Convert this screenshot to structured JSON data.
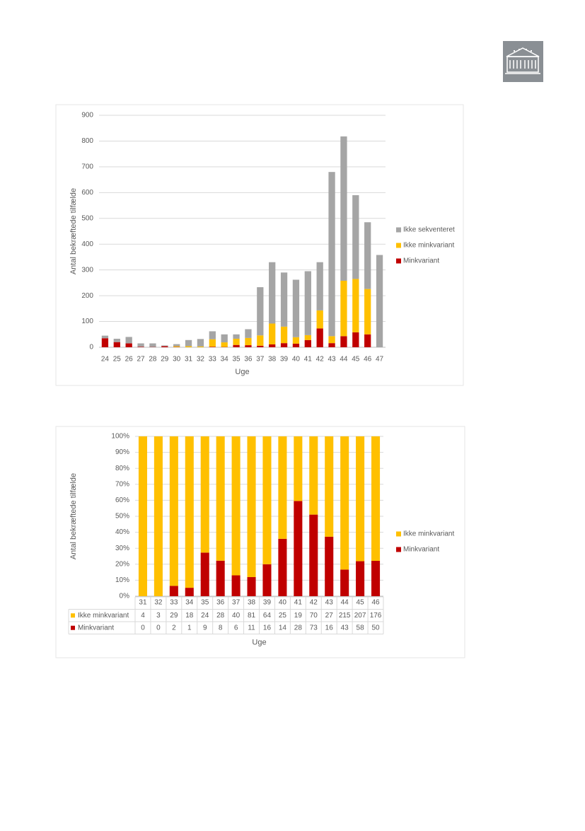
{
  "chart_data": [
    {
      "type": "stacked_bar",
      "y_label": "Antal bekræftede tilfælde",
      "x_label": "Uge",
      "categories": [
        "24",
        "25",
        "26",
        "27",
        "28",
        "29",
        "30",
        "31",
        "32",
        "33",
        "34",
        "35",
        "36",
        "37",
        "38",
        "39",
        "40",
        "41",
        "42",
        "43",
        "44",
        "45",
        "46",
        "47"
      ],
      "series": [
        {
          "name": "Minkvariant",
          "color": "#c00000",
          "values": [
            35,
            20,
            15,
            2,
            1,
            4,
            1,
            0,
            0,
            2,
            1,
            9,
            8,
            6,
            11,
            16,
            14,
            28,
            73,
            16,
            43,
            58,
            50,
            0
          ]
        },
        {
          "name": "Ikke minkvariant",
          "color": "#ffc000",
          "values": [
            0,
            0,
            0,
            0,
            0,
            0,
            3,
            4,
            3,
            29,
            18,
            24,
            28,
            40,
            81,
            64,
            25,
            19,
            70,
            27,
            215,
            207,
            176,
            0
          ]
        },
        {
          "name": "Ikke sekventeret",
          "color": "#a5a5a5",
          "values": [
            10,
            13,
            25,
            13,
            14,
            3,
            8,
            24,
            29,
            31,
            31,
            17,
            34,
            187,
            238,
            210,
            223,
            248,
            187,
            637,
            560,
            325,
            259,
            358
          ]
        }
      ],
      "ylim": [
        0,
        900
      ],
      "yticks": [
        0,
        100,
        200,
        300,
        400,
        500,
        600,
        700,
        800,
        900
      ],
      "grid": true,
      "legend": "right"
    },
    {
      "type": "percent_stacked_bar",
      "y_label": "Antal bekræftede tilfælde",
      "x_label": "Uge",
      "categories": [
        "31",
        "32",
        "33",
        "34",
        "35",
        "36",
        "37",
        "38",
        "39",
        "40",
        "41",
        "42",
        "43",
        "44",
        "45",
        "46"
      ],
      "series": [
        {
          "name": "Minkvariant",
          "color": "#c00000",
          "values": [
            0,
            0,
            2,
            1,
            9,
            8,
            6,
            11,
            16,
            14,
            28,
            73,
            16,
            43,
            58,
            50
          ]
        },
        {
          "name": "Ikke minkvariant",
          "color": "#ffc000",
          "values": [
            4,
            3,
            29,
            18,
            24,
            28,
            40,
            81,
            64,
            25,
            19,
            70,
            27,
            215,
            207,
            176
          ]
        }
      ],
      "ylim": [
        0,
        100
      ],
      "yticks": [
        {
          "value": 0,
          "label": "0%"
        },
        {
          "value": 10,
          "label": "10%"
        },
        {
          "value": 20,
          "label": "20%"
        },
        {
          "value": 30,
          "label": "30%"
        },
        {
          "value": 40,
          "label": "40%"
        },
        {
          "value": 50,
          "label": "50%"
        },
        {
          "value": 60,
          "label": "60%"
        },
        {
          "value": 70,
          "label": "70%"
        },
        {
          "value": 80,
          "label": "80%"
        },
        {
          "value": 90,
          "label": "90%"
        },
        {
          "value": 100,
          "label": "100%"
        }
      ],
      "grid": true,
      "legend": "right",
      "data_table": true
    }
  ]
}
